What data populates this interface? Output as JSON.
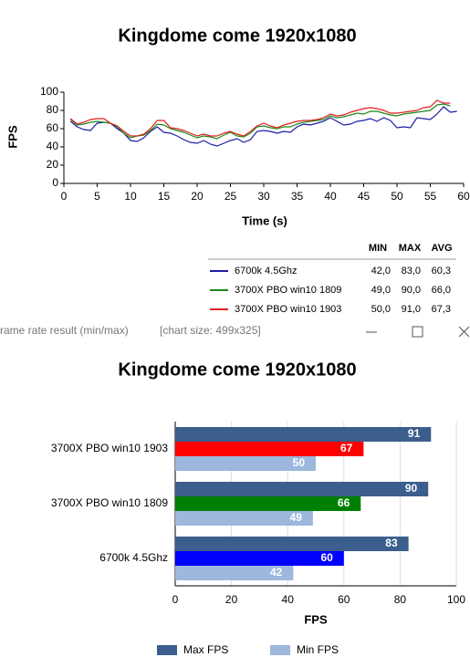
{
  "chart_data": [
    {
      "type": "line",
      "title": "Kingdome come 1920x1080",
      "y_label": "FPS",
      "x_label": "Time (s)",
      "x": [
        1,
        2,
        3,
        4,
        5,
        6,
        7,
        8,
        9,
        10,
        11,
        12,
        13,
        14,
        15,
        16,
        17,
        18,
        19,
        20,
        21,
        22,
        23,
        24,
        25,
        26,
        27,
        28,
        29,
        30,
        31,
        32,
        33,
        34,
        35,
        36,
        37,
        38,
        39,
        40,
        41,
        42,
        43,
        44,
        45,
        46,
        47,
        48,
        49,
        50,
        51,
        52,
        53,
        54,
        55,
        56,
        57,
        58,
        59
      ],
      "series": [
        {
          "name": "6700k 4.5Ghz",
          "color": "#1c1ca8",
          "values": [
            68,
            62,
            59,
            58,
            66,
            67,
            66,
            60,
            55,
            47,
            46,
            50,
            57,
            62,
            56,
            55,
            52,
            48,
            45,
            44,
            47,
            43,
            41,
            44,
            47,
            49,
            45,
            48,
            57,
            58,
            57,
            55,
            57,
            56,
            62,
            65,
            64,
            66,
            68,
            72,
            68,
            64,
            65,
            68,
            69,
            71,
            68,
            72,
            69,
            61,
            62,
            61,
            72,
            71,
            70,
            76,
            84,
            78,
            79
          ]
        },
        {
          "name": "3700X PBO win10 1809",
          "color": "#1a8a1a",
          "values": [
            70,
            64,
            65,
            67,
            68,
            67,
            66,
            62,
            55,
            50,
            52,
            53,
            58,
            65,
            64,
            60,
            58,
            56,
            53,
            50,
            52,
            51,
            49,
            53,
            56,
            52,
            51,
            55,
            62,
            63,
            61,
            60,
            62,
            62,
            65,
            67,
            68,
            69,
            70,
            74,
            72,
            73,
            75,
            77,
            76,
            79,
            79,
            77,
            75,
            74,
            76,
            77,
            78,
            79,
            80,
            86,
            87,
            85,
            null
          ]
        },
        {
          "name": "3700X PBO win10 1903",
          "color": "#e02020",
          "values": [
            71,
            65,
            67,
            70,
            71,
            71,
            66,
            63,
            57,
            52,
            52,
            54,
            60,
            69,
            69,
            61,
            60,
            58,
            55,
            52,
            54,
            52,
            52,
            55,
            57,
            54,
            52,
            57,
            63,
            66,
            63,
            61,
            64,
            66,
            68,
            69,
            69,
            70,
            72,
            76,
            74,
            75,
            78,
            80,
            82,
            83,
            82,
            80,
            77,
            77,
            78,
            79,
            80,
            83,
            84,
            91,
            88,
            88,
            null
          ]
        }
      ],
      "xlim": [
        0,
        60
      ],
      "xticks": [
        0,
        5,
        10,
        15,
        20,
        25,
        30,
        35,
        40,
        45,
        50,
        55,
        60
      ],
      "ylim": [
        0,
        100
      ],
      "yticks": [
        0,
        20,
        40,
        60,
        80,
        100
      ],
      "grid": false,
      "stats_table": {
        "columns": [
          "MIN",
          "MAX",
          "AVG"
        ],
        "rows": [
          [
            "42,0",
            "83,0",
            "60,3"
          ],
          [
            "49,0",
            "90,0",
            "66,0"
          ],
          [
            "50,0",
            "91,0",
            "67,3"
          ]
        ]
      }
    },
    {
      "type": "hbar",
      "title": "Kingdome come 1920x1080",
      "x_label": "FPS",
      "categories": [
        "3700X PBO win10 1903",
        "3700X PBO win10 1809",
        "6700k 4.5Ghz"
      ],
      "series": [
        {
          "name": "Max FPS",
          "color": "#3b5e8c",
          "values": [
            91,
            90,
            83
          ]
        },
        {
          "colors": [
            "#ff0000",
            "#008000",
            "#0000ff"
          ],
          "values": [
            67,
            66,
            60
          ]
        },
        {
          "name": "Min FPS",
          "color": "#9db8dc",
          "values": [
            50,
            49,
            42
          ]
        }
      ],
      "xlim": [
        0,
        100
      ],
      "xticks": [
        0,
        20,
        40,
        60,
        80,
        100
      ],
      "grid": true
    }
  ],
  "window": {
    "title": "rame rate result (min/max)",
    "info": "[chart size: 499x325]"
  }
}
